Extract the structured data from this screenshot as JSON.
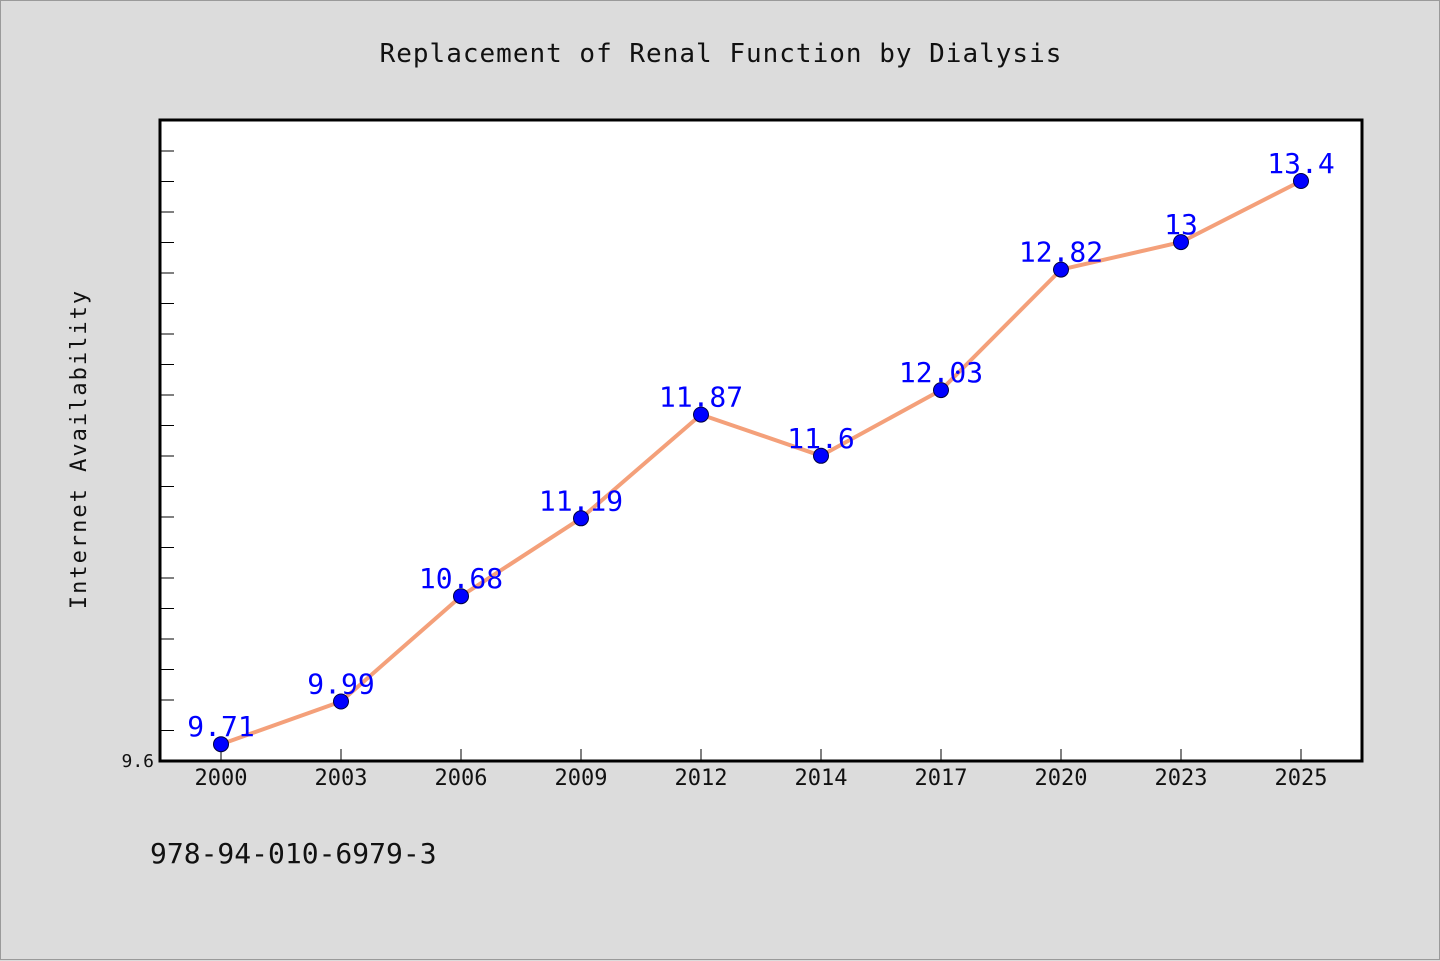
{
  "chart_data": {
    "type": "line",
    "title": "Replacement of Renal Function by Dialysis",
    "xlabel": "",
    "ylabel": "Internet Availability",
    "categories": [
      "2000",
      "2003",
      "2006",
      "2009",
      "2012",
      "2014",
      "2017",
      "2020",
      "2023",
      "2025"
    ],
    "series": [
      {
        "values": [
          9.71,
          9.99,
          10.68,
          11.19,
          11.87,
          11.6,
          12.03,
          12.82,
          13,
          13.4
        ],
        "data_labels": [
          "9.71",
          "9.99",
          "10.68",
          "11.19",
          "11.87",
          "11.6",
          "12.03",
          "12.82",
          "13",
          "13.4"
        ]
      }
    ],
    "ylim": [
      9.6,
      13.8
    ],
    "y_tick_labels": [
      "9.6"
    ],
    "grid": false,
    "legend": "none",
    "colors": {
      "line": "#f4a07a",
      "marker": "#0000ff",
      "label": "#0000ff",
      "background": "#dcdcdc",
      "plot_area": "#ffffff"
    }
  },
  "footer": {
    "isbn": "978-94-010-6979-3"
  }
}
